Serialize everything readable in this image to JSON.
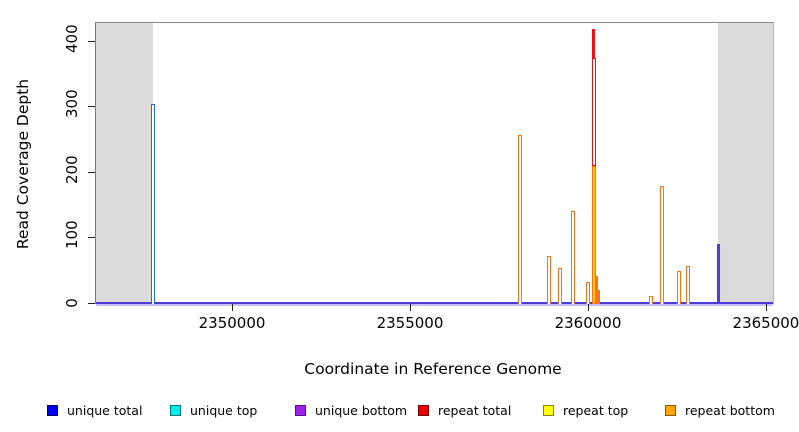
{
  "chart_data": {
    "type": "line",
    "title": "",
    "xlabel": "Coordinate in Reference Genome",
    "ylabel": "Read Coverage Depth",
    "xlim": [
      2346150,
      2365170
    ],
    "ylim": [
      0,
      429
    ],
    "x_ticks": [
      2350000,
      2355000,
      2360000,
      2365000
    ],
    "y_ticks": [
      0,
      100,
      200,
      300,
      400
    ],
    "grid": false,
    "legend_position": "bottom",
    "masked_regions": [
      [
        2346150,
        2347750
      ],
      [
        2363630,
        2365170
      ]
    ],
    "legend": [
      {
        "label": "unique total",
        "fill": "#0000EE",
        "border": "#000066"
      },
      {
        "label": "unique top",
        "fill": "#00EEEE",
        "border": "#007777"
      },
      {
        "label": "unique bottom",
        "fill": "#A020F0",
        "border": "#551177"
      },
      {
        "label": "repeat total",
        "fill": "#EE0000",
        "border": "#770000"
      },
      {
        "label": "repeat top",
        "fill": "#FFFF00",
        "border": "#888800"
      },
      {
        "label": "repeat bottom",
        "fill": "#FFA500",
        "border": "#885500"
      }
    ],
    "spikes": [
      {
        "x": 2347750,
        "value": 305,
        "value2": 293,
        "series": "unique_total",
        "style": "outline"
      },
      {
        "x": 2358060,
        "value": 258,
        "series": "repeat_bottom",
        "style": "outline"
      },
      {
        "x": 2358880,
        "value": 73,
        "series": "repeat_bottom",
        "style": "outline"
      },
      {
        "x": 2359190,
        "value": 55,
        "series": "repeat_bottom",
        "style": "outline"
      },
      {
        "x": 2359550,
        "value": 142,
        "series": "repeat_bottom",
        "style": "outline"
      },
      {
        "x": 2359980,
        "value": 33,
        "series": "repeat_bottom",
        "style": "outline"
      },
      {
        "x": 2360130,
        "total": 420,
        "top": 210,
        "bottom": 200,
        "series": "repeat_total",
        "style": "composite"
      },
      {
        "x": 2360200,
        "value": 42,
        "series": "repeat_bottom",
        "style": "solid"
      },
      {
        "x": 2360280,
        "value": 22,
        "series": "repeat_bottom",
        "style": "solid"
      },
      {
        "x": 2361740,
        "value": 12,
        "series": "repeat_bottom",
        "style": "outline"
      },
      {
        "x": 2362050,
        "value": 180,
        "series": "repeat_bottom",
        "style": "outline"
      },
      {
        "x": 2362530,
        "value": 50,
        "series": "repeat_bottom",
        "style": "outline"
      },
      {
        "x": 2362780,
        "value": 58,
        "series": "repeat_bottom",
        "style": "outline"
      },
      {
        "x": 2363630,
        "value": 91,
        "series": "unique_bottom",
        "style": "solid"
      }
    ],
    "colors": {
      "unique_total": "#2667E8",
      "unique_bottom": "#5538E0",
      "repeat_total": "#E81010",
      "repeat_top": "#FFCC00",
      "repeat_bottom": "#F97316",
      "baseline_dark": "#4A3BD2",
      "baseline_light": "#C9BCF6",
      "masked_fill": "#dbdbdb"
    }
  }
}
